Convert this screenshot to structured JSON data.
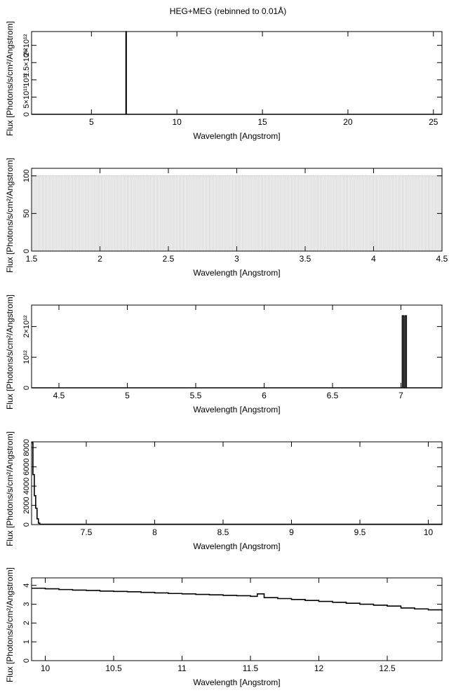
{
  "figure": {
    "title": "HEG+MEG (rebinned to 0.01Å)"
  },
  "chart_data": [
    {
      "type": "line",
      "step": true,
      "xlabel": "Wavelength [Angstrom]",
      "ylabel": "Flux [Photons/s/cm²/Angstrom]",
      "xlim": [
        1.5,
        25.5
      ],
      "ylim": [
        0,
        2400000000000.0
      ],
      "xticks": [
        5,
        10,
        15,
        20,
        25
      ],
      "xtick_labels": [
        "5",
        "10",
        "15",
        "20",
        "25"
      ],
      "yticks": [
        0,
        500000000000.0,
        1000000000000.0,
        1500000000000.0,
        2000000000000.0
      ],
      "ytick_labels": [
        "0",
        "5×10¹¹",
        "10¹²",
        "1.5×10¹²",
        "2×10¹²"
      ],
      "x": [
        1.5,
        7.0,
        7.02,
        7.04,
        25.5
      ],
      "y": [
        0,
        0,
        2400000000000.0,
        0,
        0
      ],
      "color": "#000000"
    },
    {
      "type": "bar",
      "xlabel": "Wavelength [Angstrom]",
      "ylabel": "Flux [Photons/s/cm²/Angstrom]",
      "xlim": [
        1.5,
        4.5
      ],
      "ylim": [
        0,
        110
      ],
      "xticks": [
        1.5,
        2,
        2.5,
        3,
        3.5,
        4,
        4.5
      ],
      "xtick_labels": [
        "1.5",
        "2",
        "2.5",
        "3",
        "3.5",
        "4",
        "4.5"
      ],
      "yticks": [
        0,
        50,
        100
      ],
      "ytick_labels": [
        "0",
        "50",
        "100"
      ],
      "bin_width": 0.01,
      "x_start": 1.5,
      "x_end": 4.5,
      "value": 100,
      "color": "#cfcfcf"
    },
    {
      "type": "line",
      "step": true,
      "xlabel": "Wavelength [Angstrom]",
      "ylabel": "Flux [Photons/s/cm²/Angstrom]",
      "xlim": [
        4.3,
        7.3
      ],
      "ylim": [
        0,
        2700000000000.0
      ],
      "xticks": [
        4.5,
        5,
        5.5,
        6,
        6.5,
        7
      ],
      "xtick_labels": [
        "4.5",
        "5",
        "5.5",
        "6",
        "6.5",
        "7"
      ],
      "yticks": [
        0,
        1000000000000.0,
        2000000000000.0
      ],
      "ytick_labels": [
        "0",
        "10¹²",
        "2×10¹²"
      ],
      "x": [
        4.3,
        7.0,
        7.01,
        7.02,
        7.03,
        7.04,
        7.3
      ],
      "y": [
        0,
        0,
        2350000000000.0,
        0,
        2350000000000.0,
        0,
        0
      ],
      "color": "#000000"
    },
    {
      "type": "line",
      "step": true,
      "xlabel": "Wavelength [Angstrom]",
      "ylabel": "Flux [Photons/s/cm²/Angstrom]",
      "xlim": [
        7.1,
        10.1
      ],
      "ylim": [
        0,
        8600
      ],
      "xticks": [
        7.5,
        8,
        8.5,
        9,
        9.5,
        10
      ],
      "xtick_labels": [
        "7.5",
        "8",
        "8.5",
        "9",
        "9.5",
        "10"
      ],
      "yticks": [
        0,
        2000,
        4000,
        6000,
        8000
      ],
      "ytick_labels": [
        "0",
        "2000",
        "4000",
        "6000",
        "8000"
      ],
      "x": [
        7.1,
        7.11,
        7.12,
        7.13,
        7.14,
        7.15,
        7.16,
        10.1
      ],
      "y": [
        8500,
        5200,
        3000,
        1700,
        600,
        150,
        30,
        0
      ],
      "color": "#000000"
    },
    {
      "type": "line",
      "step": true,
      "xlabel": "Wavelength [Angstrom]",
      "ylabel": "Flux [Photons/s/cm²/Angstrom]",
      "xlim": [
        9.9,
        12.9
      ],
      "ylim": [
        0,
        4.4
      ],
      "xticks": [
        10,
        10.5,
        11,
        11.5,
        12,
        12.5
      ],
      "xtick_labels": [
        "10",
        "10.5",
        "11",
        "11.5",
        "12",
        "12.5"
      ],
      "yticks": [
        0,
        1,
        2,
        3,
        4
      ],
      "ytick_labels": [
        "0",
        "1",
        "2",
        "3",
        "4"
      ],
      "x": [
        9.9,
        10.0,
        10.1,
        10.2,
        10.3,
        10.4,
        10.5,
        10.6,
        10.7,
        10.8,
        10.9,
        11.0,
        11.1,
        11.2,
        11.3,
        11.4,
        11.5,
        11.55,
        11.6,
        11.7,
        11.8,
        11.9,
        12.0,
        12.1,
        12.2,
        12.3,
        12.4,
        12.5,
        12.6,
        12.7,
        12.8,
        12.9
      ],
      "y": [
        3.85,
        3.82,
        3.78,
        3.75,
        3.73,
        3.7,
        3.68,
        3.66,
        3.63,
        3.6,
        3.57,
        3.55,
        3.52,
        3.5,
        3.47,
        3.45,
        3.42,
        3.55,
        3.35,
        3.3,
        3.25,
        3.2,
        3.15,
        3.1,
        3.05,
        3.0,
        2.95,
        2.9,
        2.8,
        2.75,
        2.7,
        2.65
      ],
      "color": "#000000"
    }
  ]
}
